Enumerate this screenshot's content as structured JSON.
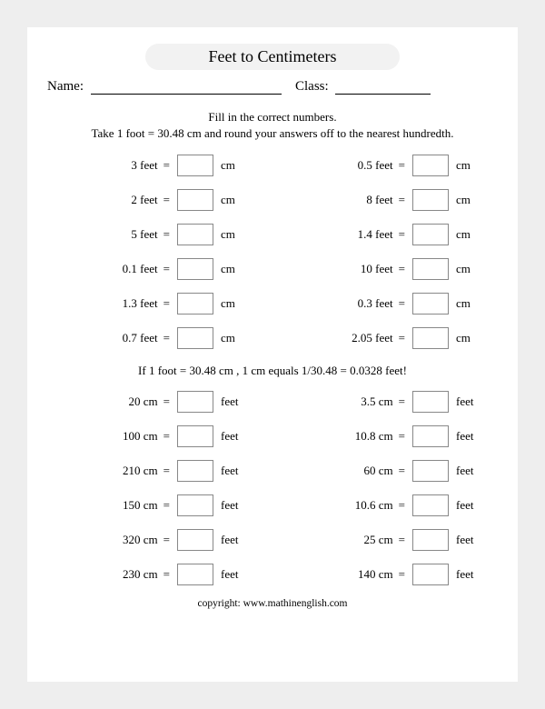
{
  "title": "Feet to Centimeters",
  "name_label": "Name:",
  "class_label": "Class:",
  "instructions_line1": "Fill in the correct numbers.",
  "instructions_line2": "Take 1 foot = 30.48 cm and round your answers off to the nearest hundredth.",
  "section1": {
    "from_unit": "feet",
    "to_unit": "cm",
    "left": [
      "3",
      "2",
      "5",
      "0.1",
      "1.3",
      "0.7"
    ],
    "right": [
      "0.5",
      "8",
      "1.4",
      "10",
      "0.3",
      "2.05"
    ]
  },
  "mid_note": "If 1 foot = 30.48 cm , 1 cm equals 1/30.48 = 0.0328 feet!",
  "section2": {
    "from_unit": "cm",
    "to_unit": "feet",
    "left": [
      "20",
      "100",
      "210",
      "150",
      "320",
      "230"
    ],
    "right": [
      "3.5",
      "10.8",
      "60",
      "10.6",
      "25",
      "140"
    ]
  },
  "footer": "copyright:   www.mathinenglish.com",
  "colors": {
    "page_bg": "#ffffff",
    "outer_bg": "#eeeeee",
    "pill_bg": "#f2f2f2",
    "text": "#000000",
    "box_border": "#888888"
  },
  "typography": {
    "title_fontsize": 18,
    "body_fontsize": 13,
    "footer_fontsize": 11.5,
    "font_family": "serif"
  }
}
